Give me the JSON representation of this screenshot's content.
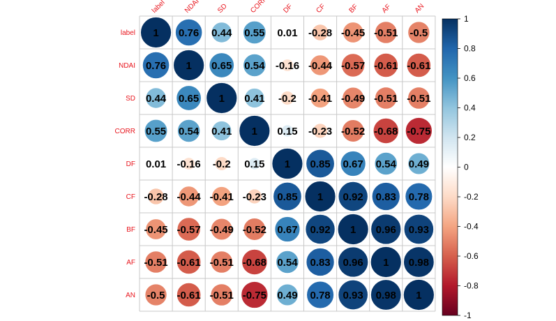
{
  "chart_data": {
    "type": "heatmap",
    "variables": [
      "label",
      "NDAI",
      "SD",
      "CORR",
      "DF",
      "CF",
      "BF",
      "AF",
      "AN"
    ],
    "matrix": [
      [
        1,
        0.76,
        0.44,
        0.55,
        0.01,
        -0.28,
        -0.45,
        -0.51,
        -0.5
      ],
      [
        0.76,
        1,
        0.65,
        0.54,
        -0.16,
        -0.44,
        -0.57,
        -0.61,
        -0.61
      ],
      [
        0.44,
        0.65,
        1,
        0.41,
        -0.2,
        -0.41,
        -0.49,
        -0.51,
        -0.51
      ],
      [
        0.55,
        0.54,
        0.41,
        1,
        0.15,
        -0.23,
        -0.52,
        -0.68,
        -0.75
      ],
      [
        0.01,
        -0.16,
        -0.2,
        0.15,
        1,
        0.85,
        0.67,
        0.54,
        0.49
      ],
      [
        -0.28,
        -0.44,
        -0.41,
        -0.23,
        0.85,
        1,
        0.92,
        0.83,
        0.78
      ],
      [
        -0.45,
        -0.57,
        -0.49,
        -0.52,
        0.67,
        0.92,
        1,
        0.96,
        0.93
      ],
      [
        -0.51,
        -0.61,
        -0.51,
        -0.68,
        0.54,
        0.83,
        0.96,
        1,
        0.98
      ],
      [
        -0.5,
        -0.61,
        -0.51,
        -0.75,
        0.49,
        0.78,
        0.93,
        0.98,
        1
      ]
    ],
    "value_labels": [
      [
        "1",
        "0.76",
        "0.44",
        "0.55",
        "0.01",
        "-0.28",
        "-0.45",
        "-0.51",
        "-0.5"
      ],
      [
        "0.76",
        "1",
        "0.65",
        "0.54",
        "-0.16",
        "-0.44",
        "-0.57",
        "-0.61",
        "-0.61"
      ],
      [
        "0.44",
        "0.65",
        "1",
        "0.41",
        "-0.2",
        "-0.41",
        "-0.49",
        "-0.51",
        "-0.51"
      ],
      [
        "0.55",
        "0.54",
        "0.41",
        "1",
        "0.15",
        "-0.23",
        "-0.52",
        "-0.68",
        "-0.75"
      ],
      [
        "0.01",
        "-0.16",
        "-0.2",
        "0.15",
        "1",
        "0.85",
        "0.67",
        "0.54",
        "0.49"
      ],
      [
        "-0.28",
        "-0.44",
        "-0.41",
        "-0.23",
        "0.85",
        "1",
        "0.92",
        "0.83",
        "0.78"
      ],
      [
        "-0.45",
        "-0.57",
        "-0.49",
        "-0.52",
        "0.67",
        "0.92",
        "1",
        "0.96",
        "0.93"
      ],
      [
        "-0.51",
        "-0.61",
        "-0.51",
        "-0.68",
        "0.54",
        "0.83",
        "0.96",
        "1",
        "0.98"
      ],
      [
        "-0.5",
        "-0.61",
        "-0.51",
        "-0.75",
        "0.49",
        "0.78",
        "0.93",
        "0.98",
        "1"
      ]
    ],
    "colorbar": {
      "range": [
        -1,
        1
      ],
      "ticks": [
        -1,
        -0.8,
        -0.6,
        -0.4,
        -0.2,
        0,
        0.2,
        0.4,
        0.6,
        0.8,
        1
      ],
      "tick_labels": [
        "-1",
        "-0.8",
        "-0.6",
        "-0.4",
        "-0.2",
        "0",
        "0.2",
        "0.4",
        "0.6",
        "0.8",
        "1"
      ],
      "palette": [
        "#67001F",
        "#B2182B",
        "#D6604D",
        "#F4A582",
        "#FDDBC7",
        "#FFFFFF",
        "#D1E5F0",
        "#92C5DE",
        "#4393C3",
        "#2166AC",
        "#053061"
      ]
    },
    "label_color": "#E8141C",
    "grid": true,
    "legend": "right"
  }
}
